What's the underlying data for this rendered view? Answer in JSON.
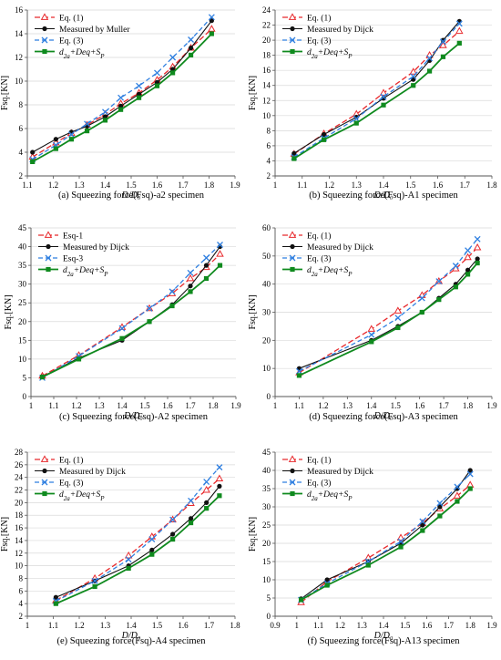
{
  "colors": {
    "eq1": "#e8292c",
    "measured": "#111111",
    "eq3": "#2f7fe0",
    "green": "#0f8a1e",
    "axis": "#555555",
    "grid": "#d9d9d9"
  },
  "chart_data": [
    {
      "type": "line",
      "caption": "(a)  Squeezing force(Fsq)-a2 specimen",
      "xlabel": "D/D₀",
      "ylabel": "Fsq.[KN]",
      "xlim": [
        1.1,
        1.9
      ],
      "ylim": [
        2,
        16
      ],
      "xticks": [
        "1.1",
        "1.2",
        "1.3",
        "1.4",
        "1.5",
        "1.6",
        "1.7",
        "1.8",
        "1.9"
      ],
      "yticks": [
        "2",
        "4",
        "6",
        "8",
        "10",
        "12",
        "14",
        "16"
      ],
      "grid": "horizontal",
      "legend": "top-left",
      "series": [
        {
          "name": "Eq. (1)",
          "style": "eq1",
          "x": [
            1.12,
            1.21,
            1.27,
            1.33,
            1.4,
            1.46,
            1.53,
            1.6,
            1.66,
            1.73,
            1.81
          ],
          "y": [
            3.6,
            4.8,
            5.6,
            6.3,
            7.2,
            8.1,
            9.0,
            10.1,
            11.2,
            12.8,
            14.4
          ]
        },
        {
          "name": "Measured by Muller",
          "style": "measured",
          "x": [
            1.12,
            1.21,
            1.27,
            1.33,
            1.4,
            1.46,
            1.53,
            1.6,
            1.66,
            1.73,
            1.81
          ],
          "y": [
            4.0,
            5.1,
            5.7,
            6.2,
            7.0,
            7.9,
            8.9,
            9.9,
            11.0,
            12.8,
            15.1
          ]
        },
        {
          "name": "Eq. (3)",
          "style": "eq3",
          "x": [
            1.12,
            1.21,
            1.27,
            1.33,
            1.4,
            1.46,
            1.53,
            1.6,
            1.66,
            1.73,
            1.81
          ],
          "y": [
            3.4,
            4.6,
            5.5,
            6.4,
            7.4,
            8.6,
            9.6,
            10.7,
            12.0,
            13.5,
            15.4
          ]
        },
        {
          "name": "",
          "style": "green",
          "x": [
            1.12,
            1.21,
            1.27,
            1.33,
            1.4,
            1.46,
            1.53,
            1.6,
            1.66,
            1.73,
            1.81
          ],
          "y": [
            3.2,
            4.3,
            5.1,
            5.8,
            6.7,
            7.6,
            8.6,
            9.6,
            10.7,
            12.2,
            14.0
          ]
        }
      ]
    },
    {
      "type": "line",
      "caption": "(b)  Squeezing force(Fsq)-A1 specimen",
      "xlabel": "D/D₀",
      "ylabel": "Fsq.[KN]",
      "xlim": [
        1.0,
        1.8
      ],
      "ylim": [
        2,
        24
      ],
      "xticks": [
        "1",
        "1.1",
        "1.2",
        "1.3",
        "1.4",
        "1.5",
        "1.6",
        "1.7",
        "1.8"
      ],
      "yticks": [
        "2",
        "4",
        "6",
        "8",
        "10",
        "12",
        "14",
        "16",
        "18",
        "20",
        "22",
        "24"
      ],
      "grid": "horizontal",
      "legend": "top-left",
      "series": [
        {
          "name": "Eq. (1)",
          "style": "eq1",
          "x": [
            1.07,
            1.18,
            1.3,
            1.4,
            1.51,
            1.57,
            1.62,
            1.68
          ],
          "y": [
            4.9,
            7.6,
            10.2,
            13.0,
            15.8,
            18.0,
            19.3,
            21.2
          ]
        },
        {
          "name": "Measured by Dijck",
          "style": "measured",
          "x": [
            1.07,
            1.18,
            1.3,
            1.4,
            1.51,
            1.57,
            1.62,
            1.68
          ],
          "y": [
            5.0,
            7.5,
            9.8,
            12.3,
            14.8,
            17.3,
            20.0,
            22.5
          ]
        },
        {
          "name": "Eq. (3)",
          "style": "eq3",
          "x": [
            1.07,
            1.18,
            1.3,
            1.4,
            1.51,
            1.57,
            1.62,
            1.68
          ],
          "y": [
            4.5,
            7.0,
            9.6,
            12.5,
            15.2,
            17.6,
            19.8,
            22.2
          ]
        },
        {
          "name": "",
          "style": "green",
          "x": [
            1.07,
            1.18,
            1.3,
            1.4,
            1.51,
            1.57,
            1.62,
            1.68
          ],
          "y": [
            4.3,
            6.8,
            9.0,
            11.4,
            14.0,
            15.9,
            17.8,
            19.6
          ]
        }
      ]
    },
    {
      "type": "line",
      "caption": "(c)  Squeezing force(Fsq)-A2 specimen",
      "xlabel": "D/D₀",
      "ylabel": "Fsq.[KN]",
      "xlim": [
        1.0,
        1.9
      ],
      "ylim": [
        0,
        45
      ],
      "xticks": [
        "1",
        "1.1",
        "1.2",
        "1.3",
        "1.4",
        "1.5",
        "1.6",
        "1.7",
        "1.8",
        "1.9"
      ],
      "yticks": [
        "0",
        "5",
        "10",
        "15",
        "20",
        "25",
        "30",
        "35",
        "40",
        "45"
      ],
      "grid": "horizontal",
      "legend": "top-left",
      "series": [
        {
          "name": "Esq-1",
          "style": "eq1",
          "x": [
            1.05,
            1.21,
            1.4,
            1.52,
            1.62,
            1.7,
            1.77,
            1.83
          ],
          "y": [
            5.5,
            11.0,
            18.5,
            23.5,
            27.5,
            31.5,
            34.5,
            38.0
          ]
        },
        {
          "name": "Measured by Dijck",
          "style": "measured",
          "x": [
            1.05,
            1.21,
            1.4,
            1.52,
            1.62,
            1.7,
            1.77,
            1.83
          ],
          "y": [
            5.3,
            10.3,
            15.0,
            20.0,
            24.5,
            29.5,
            35.0,
            40.0
          ]
        },
        {
          "name": "Esq-3",
          "style": "eq3",
          "x": [
            1.05,
            1.21,
            1.4,
            1.52,
            1.62,
            1.7,
            1.77,
            1.83
          ],
          "y": [
            5.0,
            10.8,
            18.2,
            23.5,
            28.0,
            33.0,
            37.0,
            40.5
          ]
        },
        {
          "name": "",
          "style": "green",
          "x": [
            1.05,
            1.21,
            1.4,
            1.52,
            1.62,
            1.7,
            1.77,
            1.83
          ],
          "y": [
            5.2,
            10.0,
            15.5,
            20.0,
            24.2,
            28.0,
            31.5,
            35.0
          ]
        }
      ]
    },
    {
      "type": "line",
      "caption": "(d)  Squeezing force(Fsq)-A3 specimen",
      "xlabel": "D/D₀",
      "ylabel": "Fsq.[KN]",
      "xlim": [
        1.0,
        1.9
      ],
      "ylim": [
        0,
        60
      ],
      "xticks": [
        "1",
        "1.1",
        "1.2",
        "1.3",
        "1.4",
        "1.5",
        "1.6",
        "1.7",
        "1.8",
        "1.9"
      ],
      "yticks": [
        "0",
        "10",
        "20",
        "30",
        "40",
        "50",
        "60"
      ],
      "grid": "horizontal",
      "legend": "top-left",
      "series": [
        {
          "name": "Eq. (1)",
          "style": "eq1",
          "x": [
            1.1,
            1.4,
            1.51,
            1.61,
            1.68,
            1.75,
            1.8,
            1.84
          ],
          "y": [
            8.5,
            24.0,
            30.5,
            36.0,
            41.0,
            45.5,
            49.5,
            53.0
          ]
        },
        {
          "name": "Measured by Dijck",
          "style": "measured",
          "x": [
            1.1,
            1.4,
            1.51,
            1.61,
            1.68,
            1.75,
            1.8,
            1.84
          ],
          "y": [
            10.0,
            20.0,
            25.0,
            30.0,
            35.0,
            40.0,
            45.0,
            49.0
          ]
        },
        {
          "name": "Eq. (3)",
          "style": "eq3",
          "x": [
            1.1,
            1.4,
            1.51,
            1.61,
            1.68,
            1.75,
            1.8,
            1.84
          ],
          "y": [
            9.0,
            22.0,
            28.0,
            35.0,
            41.0,
            46.5,
            52.0,
            56.0
          ]
        },
        {
          "name": "",
          "style": "green",
          "x": [
            1.1,
            1.4,
            1.51,
            1.61,
            1.68,
            1.75,
            1.8,
            1.84
          ],
          "y": [
            7.5,
            19.5,
            24.5,
            30.0,
            34.5,
            39.0,
            43.5,
            47.5
          ]
        }
      ]
    },
    {
      "type": "line",
      "caption": "(e)  Squeezing force(Fsq)-A4 specimen",
      "xlabel": "D/D₀",
      "ylabel": "Fsq.[KN]",
      "xlim": [
        1.0,
        1.8
      ],
      "ylim": [
        2,
        28
      ],
      "xticks": [
        "1",
        "1.1",
        "1.2",
        "1.3",
        "1.4",
        "1.5",
        "1.6",
        "1.7",
        "1.8"
      ],
      "yticks": [
        "2",
        "4",
        "6",
        "8",
        "10",
        "12",
        "14",
        "16",
        "18",
        "20",
        "22",
        "24",
        "26",
        "28"
      ],
      "grid": "horizontal",
      "legend": "top-left",
      "series": [
        {
          "name": "Eq. (1)",
          "style": "eq1",
          "x": [
            1.11,
            1.26,
            1.39,
            1.48,
            1.56,
            1.63,
            1.69,
            1.74
          ],
          "y": [
            4.5,
            8.0,
            11.6,
            14.6,
            17.3,
            19.9,
            22.0,
            23.8
          ]
        },
        {
          "name": "Measured by Dijck",
          "style": "measured",
          "x": [
            1.11,
            1.26,
            1.39,
            1.48,
            1.56,
            1.63,
            1.69,
            1.74
          ],
          "y": [
            5.0,
            7.6,
            10.0,
            12.5,
            15.0,
            17.5,
            20.0,
            22.6
          ]
        },
        {
          "name": "Eq. (3)",
          "style": "eq3",
          "x": [
            1.11,
            1.26,
            1.39,
            1.48,
            1.56,
            1.63,
            1.69,
            1.74
          ],
          "y": [
            4.4,
            7.6,
            11.0,
            14.2,
            17.3,
            20.3,
            23.3,
            25.6
          ]
        },
        {
          "name": "",
          "style": "green",
          "x": [
            1.11,
            1.26,
            1.39,
            1.48,
            1.56,
            1.63,
            1.69,
            1.74
          ],
          "y": [
            4.0,
            6.7,
            9.6,
            11.8,
            14.2,
            16.8,
            19.1,
            21.1
          ]
        }
      ]
    },
    {
      "type": "line",
      "caption": "(f)  Squeezing force(Fsq)-A13 specimen",
      "xlabel": "D/D₀",
      "ylabel": "Fsq.[KN]",
      "xlim": [
        0.9,
        1.9
      ],
      "ylim": [
        0,
        45
      ],
      "xticks": [
        "0.9",
        "1",
        "1.1",
        "1.2",
        "1.3",
        "1.4",
        "1.5",
        "1.6",
        "1.7",
        "1.8",
        "1.9"
      ],
      "yticks": [
        "0",
        "5",
        "10",
        "15",
        "20",
        "25",
        "30",
        "35",
        "40",
        "45"
      ],
      "grid": "horizontal",
      "legend": "top-left",
      "series": [
        {
          "name": "Eq. (1)",
          "style": "eq1",
          "x": [
            1.02,
            1.14,
            1.33,
            1.48,
            1.58,
            1.66,
            1.74,
            1.8
          ],
          "y": [
            3.8,
            9.5,
            16.0,
            21.5,
            25.5,
            29.5,
            33.0,
            36.0
          ]
        },
        {
          "name": "Measured by Dijck",
          "style": "measured",
          "x": [
            1.02,
            1.14,
            1.33,
            1.48,
            1.58,
            1.66,
            1.74,
            1.8
          ],
          "y": [
            4.8,
            10.0,
            15.0,
            20.0,
            25.0,
            30.0,
            35.0,
            40.0
          ]
        },
        {
          "name": "Eq. (3)",
          "style": "eq3",
          "x": [
            1.02,
            1.14,
            1.33,
            1.48,
            1.58,
            1.66,
            1.74,
            1.8
          ],
          "y": [
            4.5,
            9.0,
            15.0,
            20.5,
            26.0,
            31.0,
            35.5,
            39.0
          ]
        },
        {
          "name": "",
          "style": "green",
          "x": [
            1.02,
            1.14,
            1.33,
            1.48,
            1.58,
            1.66,
            1.74,
            1.8
          ],
          "y": [
            4.5,
            8.5,
            14.0,
            19.0,
            23.5,
            27.5,
            31.5,
            35.0
          ]
        }
      ]
    }
  ]
}
